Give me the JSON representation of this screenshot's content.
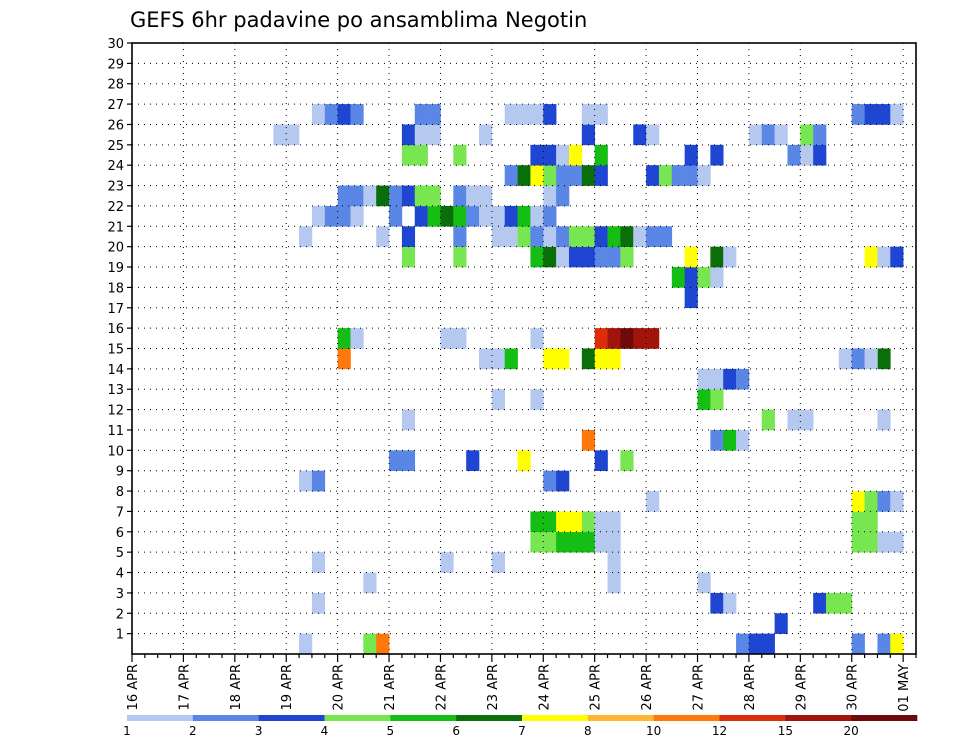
{
  "chart_data": {
    "type": "heatmap",
    "title": "GEFS 6hr padavine po ansamblima Negotin",
    "xlabel": "",
    "ylabel": "",
    "x_ticks": [
      "16 APR",
      "17 APR",
      "18 APR",
      "19 APR",
      "20 APR",
      "21 APR",
      "22 APR",
      "23 APR",
      "24 APR",
      "25 APR",
      "26 APR",
      "27 APR",
      "28 APR",
      "29 APR",
      "30 APR",
      "01 MAY"
    ],
    "y_ticks": [
      "1",
      "2",
      "3",
      "4",
      "5",
      "6",
      "7",
      "8",
      "9",
      "10",
      "11",
      "12",
      "13",
      "14",
      "15",
      "16",
      "17",
      "18",
      "19",
      "20",
      "21",
      "22",
      "23",
      "24",
      "25",
      "26",
      "27",
      "28",
      "29",
      "30"
    ],
    "x_range": [
      0,
      61
    ],
    "y_range": [
      0,
      30
    ],
    "legend": {
      "colors": [
        "#b4c8f0",
        "#5a87e6",
        "#1e46d2",
        "#78e650",
        "#14be14",
        "#0a6e0a",
        "#ffff00",
        "#ffb432",
        "#ff780a",
        "#dc2d0a",
        "#a0140a",
        "#6e0a0a"
      ],
      "labels": [
        "1",
        "2",
        "3",
        "4",
        "5",
        "6",
        "7",
        "8",
        "10",
        "12",
        "15",
        "20"
      ]
    },
    "cells": [
      [
        13,
        0,
        0
      ],
      [
        18,
        0,
        3
      ],
      [
        19,
        0,
        8
      ],
      [
        56,
        0,
        1
      ],
      [
        58,
        0,
        1
      ],
      [
        59,
        0,
        6
      ],
      [
        47,
        0,
        1
      ],
      [
        48,
        0,
        2
      ],
      [
        49,
        0,
        2
      ],
      [
        50,
        1,
        2
      ],
      [
        14,
        2,
        0
      ],
      [
        45,
        2,
        2
      ],
      [
        46,
        2,
        0
      ],
      [
        53,
        2,
        2
      ],
      [
        54,
        2,
        3
      ],
      [
        55,
        2,
        3
      ],
      [
        18,
        3,
        0
      ],
      [
        37,
        3,
        0
      ],
      [
        44,
        3,
        0
      ],
      [
        14,
        4,
        0
      ],
      [
        24,
        4,
        0
      ],
      [
        28,
        4,
        0
      ],
      [
        37,
        4,
        0
      ],
      [
        31,
        5,
        3
      ],
      [
        32,
        5,
        3
      ],
      [
        33,
        5,
        4
      ],
      [
        34,
        5,
        4
      ],
      [
        35,
        5,
        4
      ],
      [
        36,
        5,
        0
      ],
      [
        37,
        5,
        0
      ],
      [
        56,
        5,
        3
      ],
      [
        57,
        5,
        3
      ],
      [
        58,
        5,
        0
      ],
      [
        59,
        5,
        0
      ],
      [
        31,
        6,
        4
      ],
      [
        32,
        6,
        4
      ],
      [
        33,
        6,
        6
      ],
      [
        34,
        6,
        6
      ],
      [
        35,
        6,
        3
      ],
      [
        36,
        6,
        0
      ],
      [
        37,
        6,
        0
      ],
      [
        56,
        6,
        3
      ],
      [
        57,
        6,
        3
      ],
      [
        40,
        7,
        0
      ],
      [
        56,
        7,
        6
      ],
      [
        57,
        7,
        3
      ],
      [
        58,
        7,
        1
      ],
      [
        59,
        7,
        0
      ],
      [
        13,
        8,
        0
      ],
      [
        14,
        8,
        1
      ],
      [
        32,
        8,
        1
      ],
      [
        33,
        8,
        2
      ],
      [
        20,
        9,
        1
      ],
      [
        21,
        9,
        1
      ],
      [
        26,
        9,
        2
      ],
      [
        36,
        9,
        2
      ],
      [
        30,
        9,
        6
      ],
      [
        38,
        9,
        3
      ],
      [
        35,
        10,
        8
      ],
      [
        45,
        10,
        1
      ],
      [
        46,
        10,
        4
      ],
      [
        47,
        10,
        0
      ],
      [
        21,
        11,
        0
      ],
      [
        49,
        11,
        3
      ],
      [
        51,
        11,
        0
      ],
      [
        52,
        11,
        0
      ],
      [
        58,
        11,
        0
      ],
      [
        28,
        12,
        0
      ],
      [
        31,
        12,
        0
      ],
      [
        44,
        12,
        4
      ],
      [
        45,
        12,
        3
      ],
      [
        44,
        13,
        0
      ],
      [
        45,
        13,
        0
      ],
      [
        46,
        13,
        2
      ],
      [
        47,
        13,
        1
      ],
      [
        16,
        14,
        8
      ],
      [
        27,
        14,
        0
      ],
      [
        28,
        14,
        0
      ],
      [
        29,
        14,
        4
      ],
      [
        32,
        14,
        6
      ],
      [
        33,
        14,
        6
      ],
      [
        35,
        14,
        5
      ],
      [
        37,
        14,
        6
      ],
      [
        36,
        14,
        6
      ],
      [
        55,
        14,
        0
      ],
      [
        56,
        14,
        1
      ],
      [
        58,
        14,
        5
      ],
      [
        57,
        14,
        0
      ],
      [
        16,
        15,
        4
      ],
      [
        17,
        15,
        0
      ],
      [
        24,
        15,
        0
      ],
      [
        25,
        15,
        0
      ],
      [
        31,
        15,
        0
      ],
      [
        36,
        15,
        9
      ],
      [
        37,
        15,
        10
      ],
      [
        38,
        15,
        11
      ],
      [
        39,
        15,
        10
      ],
      [
        40,
        15,
        10
      ],
      [
        43,
        17,
        2
      ],
      [
        42,
        18,
        4
      ],
      [
        43,
        18,
        2
      ],
      [
        44,
        18,
        3
      ],
      [
        45,
        18,
        0
      ],
      [
        21,
        19,
        3
      ],
      [
        25,
        19,
        3
      ],
      [
        31,
        19,
        4
      ],
      [
        32,
        19,
        5
      ],
      [
        33,
        19,
        0
      ],
      [
        34,
        19,
        2
      ],
      [
        35,
        19,
        2
      ],
      [
        36,
        19,
        1
      ],
      [
        37,
        19,
        1
      ],
      [
        38,
        19,
        3
      ],
      [
        43,
        19,
        6
      ],
      [
        45,
        19,
        5
      ],
      [
        46,
        19,
        0
      ],
      [
        57,
        19,
        6
      ],
      [
        58,
        19,
        0
      ],
      [
        59,
        19,
        2
      ],
      [
        13,
        20,
        0
      ],
      [
        19,
        20,
        0
      ],
      [
        21,
        20,
        2
      ],
      [
        25,
        20,
        1
      ],
      [
        28,
        20,
        0
      ],
      [
        29,
        20,
        0
      ],
      [
        30,
        20,
        3
      ],
      [
        31,
        20,
        1
      ],
      [
        32,
        20,
        0
      ],
      [
        33,
        20,
        1
      ],
      [
        34,
        20,
        3
      ],
      [
        35,
        20,
        3
      ],
      [
        36,
        20,
        2
      ],
      [
        37,
        20,
        4
      ],
      [
        38,
        20,
        5
      ],
      [
        39,
        20,
        0
      ],
      [
        40,
        20,
        1
      ],
      [
        41,
        20,
        1
      ],
      [
        14,
        21,
        0
      ],
      [
        15,
        21,
        1
      ],
      [
        16,
        21,
        1
      ],
      [
        17,
        21,
        0
      ],
      [
        20,
        21,
        1
      ],
      [
        22,
        21,
        2
      ],
      [
        23,
        21,
        4
      ],
      [
        24,
        21,
        5
      ],
      [
        25,
        21,
        4
      ],
      [
        26,
        21,
        1
      ],
      [
        27,
        21,
        0
      ],
      [
        28,
        21,
        0
      ],
      [
        29,
        21,
        2
      ],
      [
        30,
        21,
        4
      ],
      [
        31,
        21,
        0
      ],
      [
        32,
        21,
        1
      ],
      [
        16,
        22,
        1
      ],
      [
        17,
        22,
        1
      ],
      [
        18,
        22,
        0
      ],
      [
        19,
        22,
        5
      ],
      [
        20,
        22,
        1
      ],
      [
        21,
        22,
        2
      ],
      [
        22,
        22,
        3
      ],
      [
        23,
        22,
        3
      ],
      [
        25,
        22,
        1
      ],
      [
        26,
        22,
        0
      ],
      [
        27,
        22,
        0
      ],
      [
        32,
        22,
        0
      ],
      [
        33,
        22,
        1
      ],
      [
        29,
        23,
        1
      ],
      [
        30,
        23,
        5
      ],
      [
        31,
        23,
        6
      ],
      [
        32,
        23,
        3
      ],
      [
        33,
        23,
        1
      ],
      [
        34,
        23,
        1
      ],
      [
        35,
        23,
        5
      ],
      [
        36,
        23,
        2
      ],
      [
        40,
        23,
        2
      ],
      [
        41,
        23,
        3
      ],
      [
        42,
        23,
        1
      ],
      [
        43,
        23,
        1
      ],
      [
        44,
        23,
        0
      ],
      [
        21,
        24,
        3
      ],
      [
        22,
        24,
        3
      ],
      [
        25,
        24,
        3
      ],
      [
        31,
        24,
        2
      ],
      [
        32,
        24,
        2
      ],
      [
        33,
        24,
        0
      ],
      [
        34,
        24,
        6
      ],
      [
        36,
        24,
        4
      ],
      [
        43,
        24,
        2
      ],
      [
        45,
        24,
        2
      ],
      [
        51,
        24,
        1
      ],
      [
        52,
        24,
        0
      ],
      [
        53,
        24,
        2
      ],
      [
        11,
        25,
        0
      ],
      [
        12,
        25,
        0
      ],
      [
        21,
        25,
        2
      ],
      [
        22,
        25,
        0
      ],
      [
        23,
        25,
        0
      ],
      [
        27,
        25,
        0
      ],
      [
        35,
        25,
        2
      ],
      [
        39,
        25,
        2
      ],
      [
        40,
        25,
        0
      ],
      [
        48,
        25,
        0
      ],
      [
        49,
        25,
        1
      ],
      [
        50,
        25,
        0
      ],
      [
        52,
        25,
        3
      ],
      [
        53,
        25,
        1
      ],
      [
        14,
        26,
        0
      ],
      [
        15,
        26,
        1
      ],
      [
        16,
        26,
        2
      ],
      [
        17,
        26,
        1
      ],
      [
        22,
        26,
        1
      ],
      [
        23,
        26,
        1
      ],
      [
        29,
        26,
        0
      ],
      [
        30,
        26,
        0
      ],
      [
        31,
        26,
        0
      ],
      [
        32,
        26,
        2
      ],
      [
        35,
        26,
        0
      ],
      [
        36,
        26,
        0
      ],
      [
        56,
        26,
        1
      ],
      [
        57,
        26,
        2
      ],
      [
        58,
        26,
        2
      ],
      [
        59,
        26,
        0
      ]
    ]
  }
}
